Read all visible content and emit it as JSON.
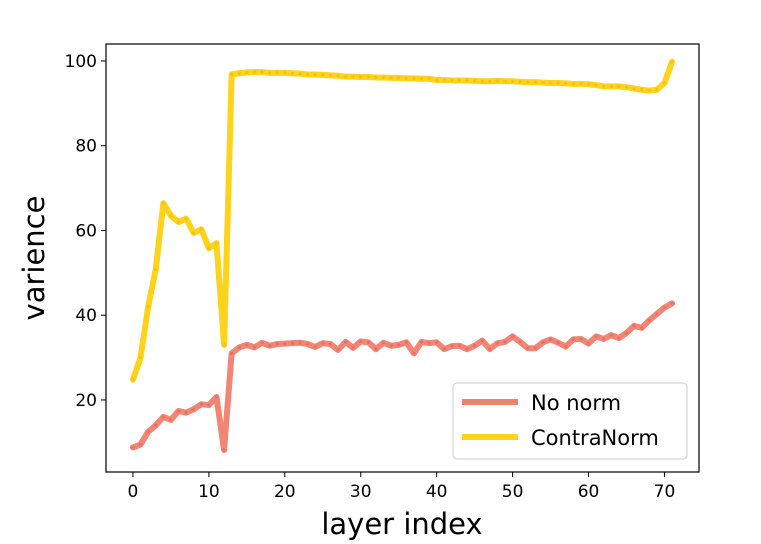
{
  "chart_data": {
    "type": "line",
    "title": "",
    "xlabel": "layer index",
    "ylabel": "varience",
    "xlim": [
      -3.55,
      74.55
    ],
    "ylim": [
      3.0,
      104.0
    ],
    "xticks": [
      0,
      10,
      20,
      30,
      40,
      50,
      60,
      70
    ],
    "yticks": [
      20,
      40,
      60,
      80,
      100
    ],
    "grid": false,
    "legend_position": "lower-right",
    "x": [
      0,
      1,
      2,
      3,
      4,
      5,
      6,
      7,
      8,
      9,
      10,
      11,
      12,
      13,
      14,
      15,
      16,
      17,
      18,
      19,
      20,
      21,
      22,
      23,
      24,
      25,
      26,
      27,
      28,
      29,
      30,
      31,
      32,
      33,
      34,
      35,
      36,
      37,
      38,
      39,
      40,
      41,
      42,
      43,
      44,
      45,
      46,
      47,
      48,
      49,
      50,
      51,
      52,
      53,
      54,
      55,
      56,
      57,
      58,
      59,
      60,
      61,
      62,
      63,
      64,
      65,
      66,
      67,
      68,
      69,
      70,
      71
    ],
    "series": [
      {
        "name": "No norm",
        "color": "#f08070",
        "values": [
          8.8,
          9.5,
          12.5,
          14.0,
          16.0,
          15.3,
          17.4,
          17.0,
          17.8,
          19.0,
          18.8,
          20.7,
          8.2,
          31.0,
          32.4,
          33.0,
          32.4,
          33.5,
          32.8,
          33.2,
          33.3,
          33.4,
          33.5,
          33.2,
          32.5,
          33.4,
          33.2,
          31.8,
          33.7,
          32.3,
          33.8,
          33.6,
          32.0,
          33.5,
          32.8,
          33.0,
          33.6,
          31.0,
          33.7,
          33.4,
          33.6,
          32.0,
          32.7,
          32.8,
          32.0,
          32.8,
          34.0,
          32.0,
          33.4,
          33.7,
          35.0,
          33.7,
          32.2,
          32.2,
          33.6,
          34.3,
          33.5,
          32.6,
          34.3,
          34.4,
          33.3,
          35.0,
          34.4,
          35.3,
          34.6,
          35.8,
          37.5,
          37.0,
          38.8,
          40.3,
          41.8,
          42.8
        ]
      },
      {
        "name": "ContraNorm",
        "color": "#ffd21c",
        "values": [
          24.8,
          30.0,
          42.0,
          50.8,
          66.4,
          63.5,
          62.0,
          62.8,
          59.4,
          60.3,
          55.8,
          57.0,
          33.0,
          96.8,
          97.1,
          97.3,
          97.4,
          97.4,
          97.2,
          97.2,
          97.2,
          97.1,
          97.0,
          96.8,
          96.8,
          96.7,
          96.6,
          96.5,
          96.3,
          96.3,
          96.2,
          96.2,
          96.1,
          96.1,
          96.0,
          96.0,
          95.9,
          95.9,
          95.8,
          95.8,
          95.5,
          95.5,
          95.4,
          95.4,
          95.4,
          95.3,
          95.2,
          95.2,
          95.3,
          95.2,
          95.2,
          95.1,
          95.0,
          95.0,
          94.9,
          94.8,
          94.8,
          94.7,
          94.6,
          94.6,
          94.5,
          94.3,
          94.0,
          94.0,
          94.0,
          93.8,
          93.5,
          93.2,
          93.0,
          93.2,
          94.8,
          99.8
        ]
      }
    ]
  }
}
